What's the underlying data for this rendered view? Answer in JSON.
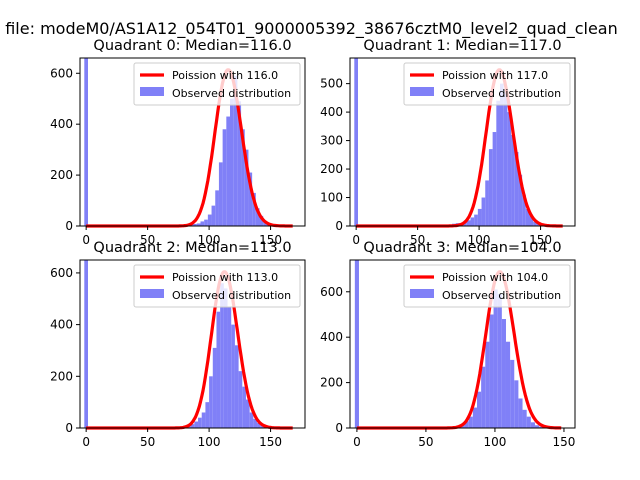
{
  "figure_title": "n file: modeM0/AS1A12_054T01_9000005392_38676cztM0_level2_quad_clean",
  "colors": {
    "observed": "#8080f7",
    "poisson": "#ff0000"
  },
  "chart_data": [
    {
      "type": "bar",
      "title": "Quadrant 0: Median=116.0",
      "median": 116.0,
      "legend": [
        "Poission with 116.0",
        "Observed distribution"
      ],
      "legend_position": "top-right",
      "xlim": [
        -5,
        178
      ],
      "ylim": [
        0,
        660
      ],
      "xticks": [
        0,
        50,
        100,
        150
      ],
      "yticks": [
        0,
        200,
        400,
        600
      ],
      "spike": {
        "x": 0,
        "height": 660
      },
      "hist_bins": [
        75,
        78,
        81,
        84,
        87,
        90,
        93,
        96,
        99,
        102,
        105,
        108,
        111,
        114,
        117,
        120,
        123,
        126,
        129,
        132,
        135,
        138,
        141,
        144,
        147,
        150,
        153,
        156
      ],
      "hist_values": [
        3,
        5,
        6,
        7,
        8,
        10,
        18,
        25,
        45,
        80,
        140,
        250,
        380,
        430,
        500,
        590,
        490,
        380,
        300,
        210,
        130,
        70,
        40,
        20,
        12,
        8,
        5,
        3
      ],
      "bin_width": 3
    },
    {
      "type": "bar",
      "title": "Quadrant 1: Median=117.0",
      "median": 117.0,
      "legend": [
        "Poission with 117.0",
        "Observed distribution"
      ],
      "legend_position": "top-right",
      "xlim": [
        -5,
        178
      ],
      "ylim": [
        0,
        590
      ],
      "xticks": [
        0,
        50,
        100,
        150
      ],
      "yticks": [
        0,
        100,
        200,
        300,
        400,
        500
      ],
      "spike": {
        "x": 0,
        "height": 590
      },
      "hist_bins": [
        75,
        78,
        81,
        84,
        87,
        90,
        93,
        96,
        99,
        102,
        105,
        108,
        111,
        114,
        117,
        120,
        123,
        126,
        129,
        132,
        135,
        138,
        141,
        144,
        147,
        150,
        153,
        156
      ],
      "hist_values": [
        5,
        8,
        10,
        10,
        15,
        20,
        30,
        40,
        60,
        100,
        160,
        270,
        330,
        440,
        500,
        470,
        400,
        320,
        260,
        180,
        110,
        60,
        35,
        15,
        8,
        5,
        3,
        2
      ],
      "bin_width": 3
    },
    {
      "type": "bar",
      "title": "Quadrant 2: Median=113.0",
      "median": 113.0,
      "legend": [
        "Poission with 113.0",
        "Observed distribution"
      ],
      "legend_position": "top-right",
      "xlim": [
        -5,
        178
      ],
      "ylim": [
        0,
        650
      ],
      "xticks": [
        0,
        50,
        100,
        150
      ],
      "yticks": [
        0,
        200,
        400,
        600
      ],
      "spike": {
        "x": 0,
        "height": 650
      },
      "hist_bins": [
        70,
        73,
        76,
        79,
        82,
        85,
        88,
        91,
        94,
        97,
        100,
        103,
        106,
        109,
        112,
        115,
        118,
        121,
        124,
        127,
        130,
        133,
        136,
        139,
        142,
        145,
        148,
        151
      ],
      "hist_values": [
        3,
        5,
        6,
        8,
        10,
        15,
        25,
        40,
        60,
        100,
        200,
        310,
        450,
        560,
        540,
        470,
        400,
        320,
        220,
        160,
        110,
        60,
        35,
        20,
        10,
        6,
        4,
        2
      ],
      "bin_width": 3
    },
    {
      "type": "bar",
      "title": "Quadrant 3: Median=104.0",
      "median": 104.0,
      "legend": [
        "Poission with 104.0",
        "Observed distribution"
      ],
      "legend_position": "top-right",
      "xlim": [
        -5,
        158
      ],
      "ylim": [
        0,
        740
      ],
      "xticks": [
        0,
        50,
        100,
        150
      ],
      "yticks": [
        0,
        200,
        400,
        600
      ],
      "spike": {
        "x": 0,
        "height": 740
      },
      "hist_bins": [
        60,
        63,
        66,
        69,
        72,
        75,
        78,
        81,
        84,
        87,
        90,
        93,
        96,
        99,
        102,
        105,
        108,
        111,
        114,
        117,
        120,
        123,
        126,
        129,
        132,
        135,
        138,
        141
      ],
      "hist_values": [
        2,
        3,
        5,
        6,
        10,
        18,
        30,
        50,
        90,
        160,
        270,
        380,
        500,
        610,
        590,
        480,
        380,
        300,
        210,
        130,
        80,
        50,
        25,
        12,
        6,
        4,
        2,
        1
      ],
      "bin_width": 3
    }
  ]
}
